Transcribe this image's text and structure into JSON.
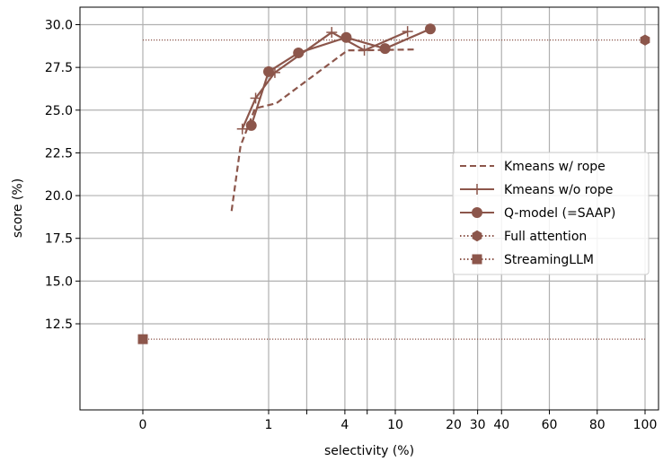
{
  "chart_data": {
    "type": "line",
    "title": "",
    "xlabel": "selectivity (%)",
    "ylabel": "score (%)",
    "x_scale": "custom (0 at far left, log-like from 1 to 10, compressed linear from 10 to 100)",
    "xlim": [
      0,
      100
    ],
    "ylim": [
      10.7,
      30.5
    ],
    "grid": true,
    "legend_position": "center-right",
    "x_ticks": [
      0,
      1,
      2,
      4,
      6,
      10,
      20,
      30,
      40,
      60,
      80,
      100
    ],
    "x_tick_labels": [
      "0",
      "1",
      "",
      "4",
      "",
      "10",
      "20",
      "30",
      "40",
      "60",
      "80",
      "100"
    ],
    "y_ticks": [
      12.5,
      15.0,
      17.5,
      20.0,
      22.5,
      25.0,
      27.5,
      30.0
    ],
    "y_tick_labels": [
      "12.5",
      "15.0",
      "17.5",
      "20.0",
      "22.5",
      "25.0",
      "27.5",
      "30.0"
    ],
    "series": [
      {
        "name": "Kmeans w/ rope",
        "style": "dashed",
        "marker": "none",
        "color": "#8c564b",
        "x": [
          0.51,
          0.6,
          0.78,
          1.15,
          4.2,
          5.5,
          13.5
        ],
        "y": [
          19.1,
          22.9,
          25.1,
          25.4,
          28.5,
          28.5,
          28.55
        ]
      },
      {
        "name": "Kmeans w/o rope",
        "style": "solid",
        "marker": "plus",
        "color": "#8c564b",
        "x": [
          0.62,
          0.79,
          1.12,
          3.15,
          5.7,
          12.1
        ],
        "y": [
          23.9,
          25.7,
          27.2,
          29.55,
          28.5,
          29.6
        ]
      },
      {
        "name": "Q-model (=SAAP)",
        "style": "solid",
        "marker": "circle",
        "color": "#8c564b",
        "x": [
          0.73,
          1.0,
          1.72,
          4.1,
          8.3,
          16.0
        ],
        "y": [
          24.1,
          27.25,
          28.35,
          29.25,
          28.6,
          29.75
        ]
      },
      {
        "name": "Full attention",
        "style": "dotted",
        "marker": "hexagon",
        "color": "#8c564b",
        "x": [
          100
        ],
        "y": [
          29.1
        ],
        "reference_y": 29.1
      },
      {
        "name": "StreamingLLM",
        "style": "dotted",
        "marker": "square",
        "color": "#8c564b",
        "x": [
          0
        ],
        "y": [
          11.6
        ],
        "reference_y": 11.6
      }
    ]
  }
}
